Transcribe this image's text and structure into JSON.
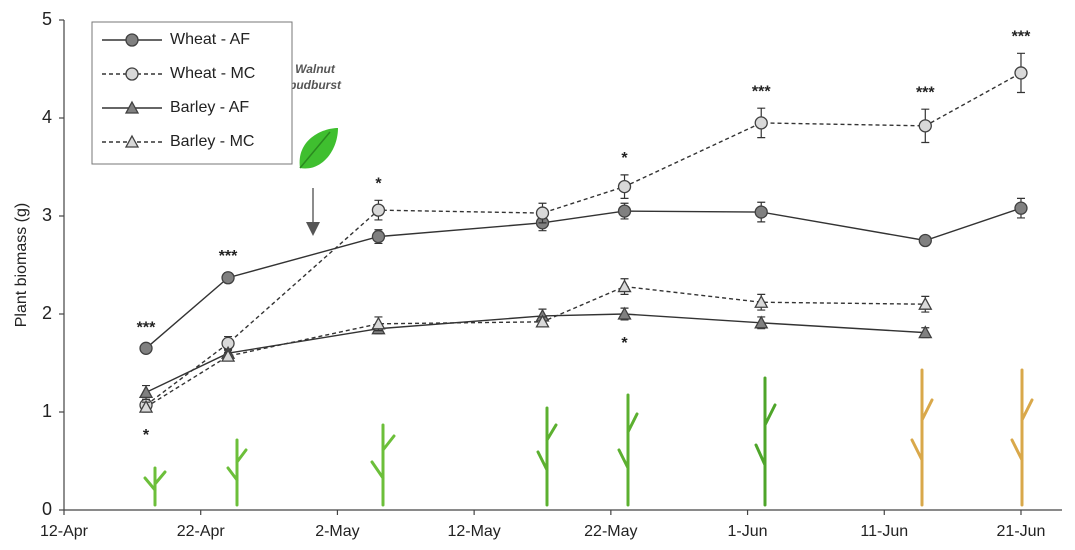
{
  "chart_data": {
    "type": "line",
    "y_label": "Plant biomass (g)",
    "x": [
      "18-Apr",
      "24-Apr",
      "5-May",
      "17-May",
      "23-May",
      "2-Jun",
      "14-Jun",
      "21-Jun"
    ],
    "xlim": [
      "12-Apr",
      "24-Jun"
    ],
    "xticks": [
      "12-Apr",
      "22-Apr",
      "2-May",
      "12-May",
      "22-May",
      "1-Jun",
      "11-Jun",
      "21-Jun"
    ],
    "ylim": [
      0,
      5
    ],
    "yticks": [
      0,
      1,
      2,
      3,
      4,
      5
    ],
    "legend": "top-left",
    "series": [
      {
        "name": "Wheat - AF",
        "color": "#808080",
        "marker": "circle",
        "dashed": false,
        "values": [
          1.65,
          2.37,
          2.79,
          2.93,
          3.05,
          3.04,
          2.75,
          3.08
        ],
        "errors": [
          0.04,
          0.05,
          0.07,
          0.08,
          0.08,
          0.1,
          0.04,
          0.1
        ]
      },
      {
        "name": "Wheat - MC",
        "color": "#d9d9d9",
        "marker": "circle",
        "dashed": true,
        "values": [
          1.07,
          1.7,
          3.06,
          3.03,
          3.3,
          3.95,
          3.92,
          4.46
        ],
        "errors": [
          0.05,
          0.07,
          0.1,
          0.1,
          0.12,
          0.15,
          0.17,
          0.2
        ]
      },
      {
        "name": "Barley - AF",
        "color": "#808080",
        "marker": "triangle",
        "dashed": false,
        "values": [
          1.2,
          1.6,
          1.85,
          1.98,
          2.0,
          1.91,
          1.81,
          null
        ],
        "errors": [
          0.07,
          0.04,
          0.05,
          0.07,
          0.06,
          0.06,
          0.05,
          null
        ]
      },
      {
        "name": "Barley - MC",
        "color": "#d9d9d9",
        "marker": "triangle",
        "dashed": true,
        "values": [
          1.05,
          1.57,
          1.9,
          1.92,
          2.28,
          2.12,
          2.1,
          null
        ],
        "errors": [
          0.05,
          0.04,
          0.07,
          0.05,
          0.08,
          0.08,
          0.08,
          null
        ]
      }
    ],
    "significance_above": [
      "***",
      "***",
      "*",
      null,
      "*",
      "***",
      "***",
      "***"
    ],
    "significance_below": [
      "*",
      null,
      null,
      null,
      "*",
      null,
      null,
      null
    ],
    "annotation": [
      "Walnut",
      "budburst"
    ]
  }
}
